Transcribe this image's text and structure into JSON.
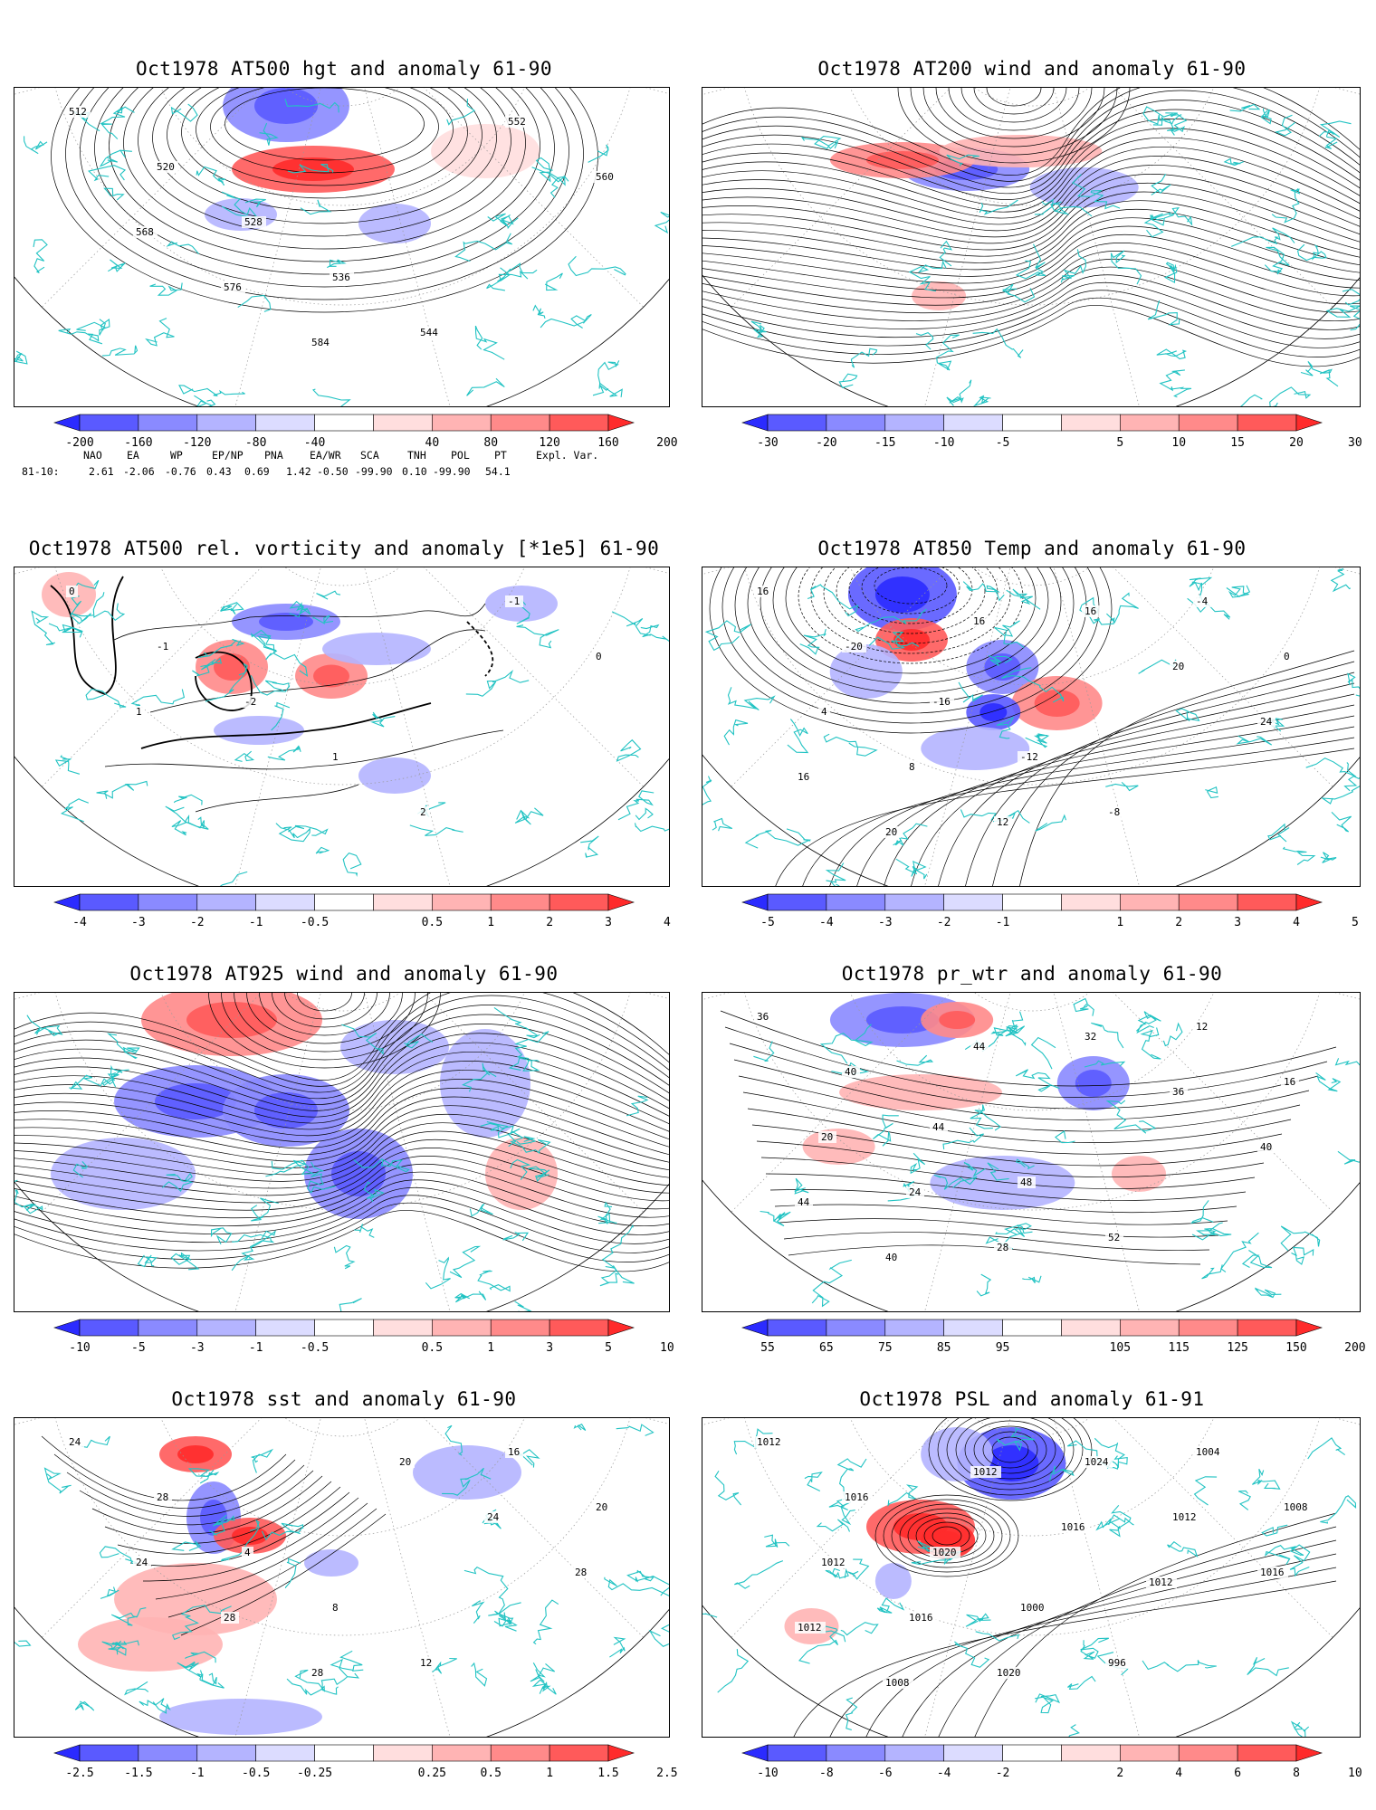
{
  "panels": [
    {
      "id": "p1",
      "title": "Oct1978 AT500 hgt and anomaly 61-90",
      "colorbar": {
        "ticks": [
          "-200",
          "-160",
          "-120",
          "-80",
          "-40",
          "40",
          "80",
          "120",
          "160",
          "200"
        ],
        "colors": [
          "#2b2bff",
          "#5a5aff",
          "#8a8aff",
          "#b4b4ff",
          "#dcdcff",
          "#ffffff",
          "#ffdede",
          "#ffb4b4",
          "#ff8a8a",
          "#ff5a5a",
          "#ff2b2b"
        ]
      },
      "contour_labels": [
        "512",
        "520",
        "528",
        "536",
        "544",
        "552",
        "560",
        "568",
        "576",
        "584"
      ],
      "indices": {
        "header": [
          "NAO",
          "EA",
          "WP",
          "EP/NP",
          "PNA",
          "EA/WR",
          "SCA",
          "TNH",
          "POL",
          "PT",
          "Expl. Var."
        ],
        "row_label": "81-10:",
        "values": [
          "2.61",
          "-2.06",
          "-0.76",
          "0.43",
          "0.69",
          "1.42",
          "-0.50",
          "-99.90",
          "0.10",
          "-99.90",
          "54.1"
        ]
      }
    },
    {
      "id": "p2",
      "title": "Oct1978 AT200 wind and anomaly 61-90",
      "colorbar": {
        "ticks": [
          "-30",
          "-20",
          "-15",
          "-10",
          "-5",
          "5",
          "10",
          "15",
          "20",
          "30"
        ],
        "colors": [
          "#2b2bff",
          "#5a5aff",
          "#8a8aff",
          "#b4b4ff",
          "#dcdcff",
          "#ffffff",
          "#ffdede",
          "#ffb4b4",
          "#ff8a8a",
          "#ff5a5a",
          "#ff2b2b"
        ]
      }
    },
    {
      "id": "p3",
      "title": "Oct1978 AT500 rel. vorticity and anomaly [*1e5] 61-90",
      "colorbar": {
        "ticks": [
          "-4",
          "-3",
          "-2",
          "-1",
          "-0.5",
          "0.5",
          "1",
          "2",
          "3",
          "4"
        ],
        "colors": [
          "#2b2bff",
          "#5a5aff",
          "#8a8aff",
          "#b4b4ff",
          "#dcdcff",
          "#ffffff",
          "#ffdede",
          "#ffb4b4",
          "#ff8a8a",
          "#ff5a5a",
          "#ff2b2b"
        ]
      },
      "contour_labels": [
        "0",
        "-1",
        "-2",
        "1",
        "2",
        "-1",
        "0",
        "1"
      ]
    },
    {
      "id": "p4",
      "title": "Oct1978 AT850 Temp and anomaly 61-90",
      "colorbar": {
        "ticks": [
          "-5",
          "-4",
          "-3",
          "-2",
          "-1",
          "1",
          "2",
          "3",
          "4",
          "5"
        ],
        "colors": [
          "#2b2bff",
          "#5a5aff",
          "#8a8aff",
          "#b4b4ff",
          "#dcdcff",
          "#ffffff",
          "#ffdede",
          "#ffb4b4",
          "#ff8a8a",
          "#ff5a5a",
          "#ff2b2b"
        ]
      },
      "contour_labels": [
        "16",
        "-20",
        "-16",
        "-12",
        "-8",
        "-4",
        "0",
        "4",
        "8",
        "12",
        "16",
        "20",
        "24",
        "16",
        "20",
        "16"
      ]
    },
    {
      "id": "p5",
      "title": "Oct1978 AT925 wind and anomaly 61-90",
      "colorbar": {
        "ticks": [
          "-10",
          "-5",
          "-3",
          "-1",
          "-0.5",
          "0.5",
          "1",
          "3",
          "5",
          "10"
        ],
        "colors": [
          "#2b2bff",
          "#5a5aff",
          "#8a8aff",
          "#b4b4ff",
          "#dcdcff",
          "#ffffff",
          "#ffdede",
          "#ffb4b4",
          "#ff8a8a",
          "#ff5a5a",
          "#ff2b2b"
        ]
      }
    },
    {
      "id": "p6",
      "title": "Oct1978 pr_wtr and anomaly 61-90",
      "colorbar": {
        "ticks": [
          "55",
          "65",
          "75",
          "85",
          "95",
          "105",
          "115",
          "125",
          "150",
          "200"
        ],
        "colors": [
          "#2b2bff",
          "#5a5aff",
          "#8a8aff",
          "#b4b4ff",
          "#dcdcff",
          "#ffffff",
          "#ffdede",
          "#ffb4b4",
          "#ff8a8a",
          "#ff5a5a",
          "#ff2b2b"
        ]
      },
      "contour_labels": [
        "36",
        "40",
        "44",
        "48",
        "52",
        "12",
        "16",
        "20",
        "24",
        "28",
        "32",
        "36",
        "40",
        "44",
        "40",
        "44"
      ]
    },
    {
      "id": "p7",
      "title": "Oct1978 sst and anomaly 61-90",
      "colorbar": {
        "ticks": [
          "-2.5",
          "-1.5",
          "-1",
          "-0.5",
          "-0.25",
          "0.25",
          "0.5",
          "1",
          "1.5",
          "2.5"
        ],
        "colors": [
          "#2b2bff",
          "#5a5aff",
          "#8a8aff",
          "#b4b4ff",
          "#dcdcff",
          "#ffffff",
          "#ffdede",
          "#ffb4b4",
          "#ff8a8a",
          "#ff5a5a",
          "#ff2b2b"
        ]
      },
      "contour_labels": [
        "24",
        "28",
        "4",
        "8",
        "12",
        "16",
        "20",
        "24",
        "28",
        "28",
        "20",
        "24",
        "28"
      ]
    },
    {
      "id": "p8",
      "title": "Oct1978 PSL and anomaly 61-91",
      "colorbar": {
        "ticks": [
          "-10",
          "-8",
          "-6",
          "-4",
          "-2",
          "2",
          "4",
          "6",
          "8",
          "10"
        ],
        "colors": [
          "#2b2bff",
          "#5a5aff",
          "#8a8aff",
          "#b4b4ff",
          "#dcdcff",
          "#ffffff",
          "#ffdede",
          "#ffb4b4",
          "#ff8a8a",
          "#ff5a5a",
          "#ff2b2b"
        ]
      },
      "contour_labels": [
        "1012",
        "1016",
        "1020",
        "1000",
        "996",
        "1004",
        "1008",
        "1012",
        "1016",
        "1020",
        "1024",
        "1012",
        "1016",
        "1012",
        "1008",
        "1012",
        "1016",
        "1012"
      ]
    }
  ]
}
